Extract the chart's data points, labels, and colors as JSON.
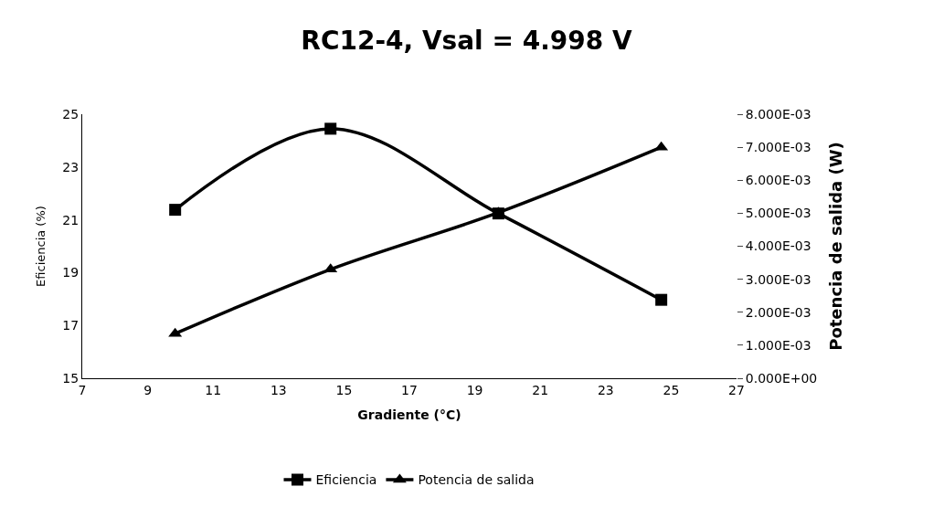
{
  "chart_data": {
    "type": "line",
    "title": "RC12-4, Vsal = 4.998 V",
    "xlabel": "Gradiente (°C)",
    "ylabel": "Eficiencia (%)",
    "y2label": "Potencia de salida (W)",
    "series": [
      {
        "name": "Eficiencia",
        "color": "#000000",
        "marker": "square",
        "x": [
          9.84,
          14.59,
          19.72,
          24.7
        ],
        "values": [
          21.38,
          24.45,
          21.24,
          17.97
        ]
      },
      {
        "name": "Potencia de salida",
        "color": "#000000",
        "marker": "triangle",
        "axis": "y2",
        "x": [
          9.84,
          14.59,
          19.72,
          24.7
        ],
        "values": [
          0.00135,
          0.0033,
          0.00502,
          0.007
        ]
      }
    ],
    "xlim": [
      7,
      27
    ],
    "xticks": [
      7,
      9,
      11,
      13,
      15,
      17,
      19,
      21,
      23,
      25,
      27
    ],
    "ylim": [
      15,
      25
    ],
    "yticks": [
      15,
      17,
      19,
      21,
      23,
      25
    ],
    "y2lim": [
      0,
      0.008
    ],
    "y2ticks": [
      {
        "value": 0,
        "label": "0.000E+00"
      },
      {
        "value": 0.001,
        "label": "1.000E-03"
      },
      {
        "value": 0.002,
        "label": "2.000E-03"
      },
      {
        "value": 0.003,
        "label": "3.000E-03"
      },
      {
        "value": 0.004,
        "label": "4.000E-03"
      },
      {
        "value": 0.005,
        "label": "5.000E-03"
      },
      {
        "value": 0.006,
        "label": "6.000E-03"
      },
      {
        "value": 0.007,
        "label": "7.000E-03"
      },
      {
        "value": 0.008,
        "label": "8.000E-03"
      }
    ],
    "legend": "bottom",
    "line_style": "solid"
  }
}
